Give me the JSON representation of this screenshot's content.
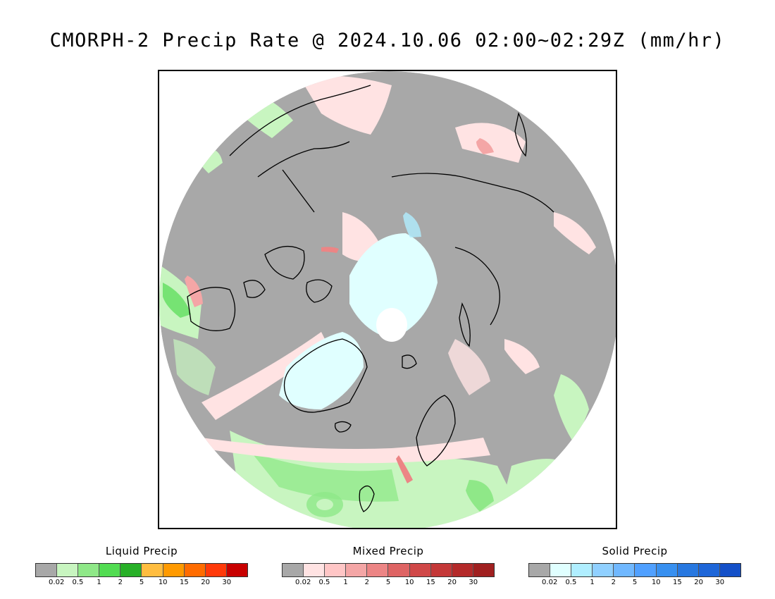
{
  "title": "CMORPH-2 Precip Rate @ 2024.10.06 02:00~02:29Z (mm/hr)",
  "map": {
    "projection": "polar-stereographic-north",
    "colors": {
      "background_no_precip": "#a8a8a8",
      "outside_domain": "#ffffff",
      "coastline": "#000000"
    }
  },
  "legends": [
    {
      "id": "liquid",
      "title": "Liquid Precip",
      "colors": [
        "#a8a8a8",
        "#c8f5c0",
        "#8fe888",
        "#52dc52",
        "#28b028",
        "#ffbd40",
        "#ff9a00",
        "#ff6c00",
        "#ff3a0a",
        "#c80000"
      ],
      "ticks": [
        "0.02",
        "0.5",
        "1",
        "2",
        "5",
        "10",
        "15",
        "20",
        "30"
      ]
    },
    {
      "id": "mixed",
      "title": "Mixed Precip",
      "colors": [
        "#a8a8a8",
        "#ffe3e3",
        "#ffc6c6",
        "#f4a6a6",
        "#ec8585",
        "#de6464",
        "#d04848",
        "#c43838",
        "#b42a2a",
        "#a02020"
      ],
      "ticks": [
        "0.02",
        "0.5",
        "1",
        "2",
        "5",
        "10",
        "15",
        "20",
        "30"
      ]
    },
    {
      "id": "solid",
      "title": "Solid Precip",
      "colors": [
        "#a8a8a8",
        "#e0ffff",
        "#b0eeff",
        "#90d0ff",
        "#70b8ff",
        "#50a0ff",
        "#3890f0",
        "#2878e0",
        "#1e66d8",
        "#1450c8"
      ],
      "ticks": [
        "0.02",
        "0.5",
        "1",
        "2",
        "5",
        "10",
        "15",
        "20",
        "30"
      ]
    }
  ]
}
